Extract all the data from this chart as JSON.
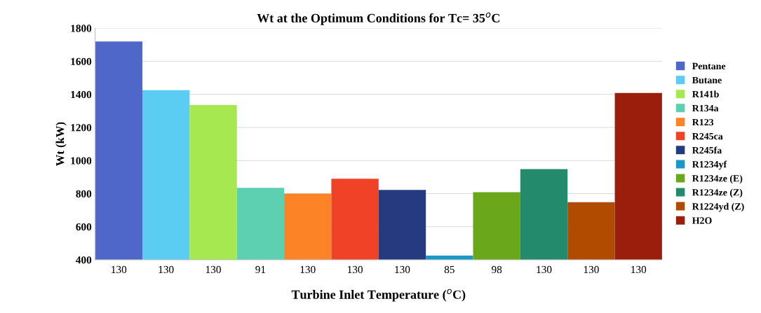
{
  "chart_data": {
    "type": "bar",
    "title": "Wt at the Optimum Conditions for Tc= 35$^{o}$C",
    "xlabel": "Turbine Inlet Temperature ($^{o}$C)",
    "ylabel": "Wt (kW)",
    "categories": [
      "130",
      "130",
      "130",
      "91",
      "130",
      "130",
      "130",
      "85",
      "98",
      "130",
      "130",
      "130"
    ],
    "series": [
      {
        "name": "Pentane",
        "color": "#4f67c9",
        "values": [
          1720,
          null,
          null,
          null,
          null,
          null,
          null,
          null,
          null,
          null,
          null,
          null
        ]
      },
      {
        "name": "Butane",
        "color": "#5ccdf2",
        "values": [
          null,
          1425,
          null,
          null,
          null,
          null,
          null,
          null,
          null,
          null,
          null,
          null
        ]
      },
      {
        "name": "R141b",
        "color": "#a6e84f",
        "values": [
          null,
          null,
          1335,
          null,
          null,
          null,
          null,
          null,
          null,
          null,
          null,
          null
        ]
      },
      {
        "name": "R134a",
        "color": "#5dd0b2",
        "values": [
          null,
          null,
          null,
          835,
          null,
          null,
          null,
          null,
          null,
          null,
          null,
          null
        ]
      },
      {
        "name": "R123",
        "color": "#fd8426",
        "values": [
          null,
          null,
          null,
          null,
          800,
          null,
          null,
          null,
          null,
          null,
          null,
          null
        ]
      },
      {
        "name": "R245ca",
        "color": "#ef4227",
        "values": [
          null,
          null,
          null,
          null,
          null,
          890,
          null,
          null,
          null,
          null,
          null,
          null
        ]
      },
      {
        "name": "R245fa",
        "color": "#263a80",
        "values": [
          null,
          null,
          null,
          null,
          null,
          null,
          822,
          null,
          null,
          null,
          null,
          null
        ]
      },
      {
        "name": "R1234yf",
        "color": "#1a98c8",
        "values": [
          null,
          null,
          null,
          null,
          null,
          null,
          null,
          425,
          null,
          null,
          null,
          null
        ]
      },
      {
        "name": "R1234ze (E)",
        "color": "#6aa71a",
        "values": [
          null,
          null,
          null,
          null,
          null,
          null,
          null,
          null,
          808,
          null,
          null,
          null
        ]
      },
      {
        "name": "R1234ze (Z)",
        "color": "#248a6c",
        "values": [
          null,
          null,
          null,
          null,
          null,
          null,
          null,
          null,
          null,
          948,
          null,
          null
        ]
      },
      {
        "name": "R1224yd (Z)",
        "color": "#b04b00",
        "values": [
          null,
          null,
          null,
          null,
          null,
          null,
          null,
          null,
          null,
          null,
          748,
          null
        ]
      },
      {
        "name": "H2O",
        "color": "#9b1e0c",
        "values": [
          null,
          null,
          null,
          null,
          null,
          null,
          null,
          null,
          null,
          null,
          null,
          1408
        ]
      }
    ],
    "ylim": [
      400,
      1800
    ],
    "yticks": [
      400,
      600,
      800,
      1000,
      1200,
      1400,
      1600,
      1800
    ],
    "grid": "y",
    "legend": "right"
  }
}
